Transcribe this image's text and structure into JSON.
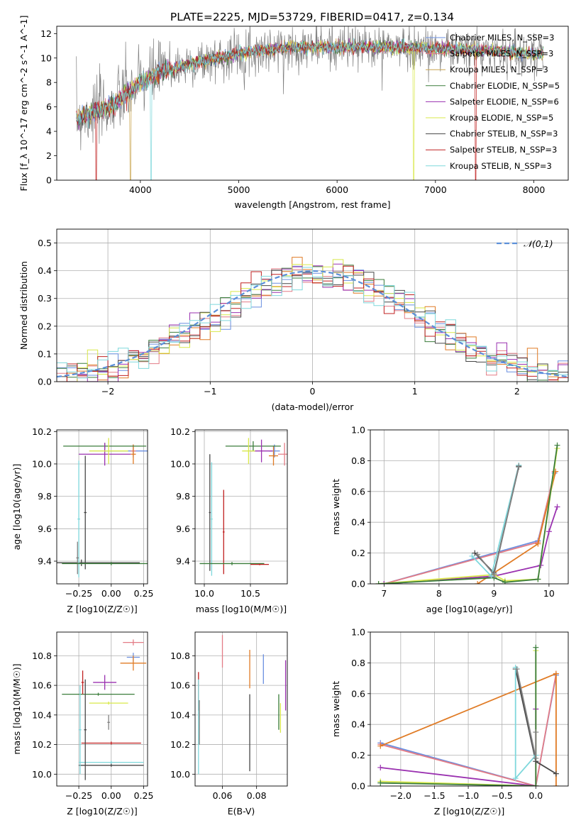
{
  "figure_title": "PLATE=2225, MJD=53729, FIBERID=0417, z=0.134",
  "colors": {
    "chabrier_miles": "#6a8fe0",
    "salpeter_miles": "#e37c86",
    "kroupa_miles": "#c9a44e",
    "chabrier_elodie": "#3b7d3b",
    "salpeter_elodie": "#9a31b0",
    "kroupa_elodie": "#d8e84a",
    "chabrier_stelib": "#474747",
    "salpeter_stelib": "#c02020",
    "kroupa_stelib": "#7fd8dc",
    "data_grey": "#808080",
    "orange": "#e07b25",
    "gaussian": "#5b8fd8",
    "grid": "#b0b0b0"
  },
  "chart_data": [
    {
      "id": "spectrum",
      "type": "line",
      "title": "PLATE=2225, MJD=53729, FIBERID=0417, z=0.134",
      "xlabel": "wavelength [Angstrom, rest frame]",
      "ylabel": "Flux [f_λ 10^-17 erg cm^-2 s^-1 A^-1]",
      "xlim": [
        3150,
        8350
      ],
      "ylim": [
        0,
        12.6
      ],
      "xticks": [
        "4000",
        "5000",
        "6000",
        "7000",
        "8000"
      ],
      "yticks": [
        "0",
        "2",
        "4",
        "6",
        "8",
        "10",
        "12"
      ],
      "grid": false,
      "legend": "upper right",
      "legend_entries": [
        "Chabrier MILES, N_SSP=3",
        "Salpeter MILES, N_SSP=3",
        "Kroupa MILES, N_SSP=3",
        "Chabrier ELODIE, N_SSP=5",
        "Salpeter ELODIE, N_SSP=6",
        "Kroupa ELODIE, N_SSP=5",
        "Chabrier STELIB, N_SSP=3",
        "Salpeter STELIB, N_SSP=3",
        "Kroupa STELIB, N_SSP=3"
      ],
      "continuum": {
        "x": [
          3350,
          3500,
          3700,
          3900,
          4000,
          4200,
          4500,
          4800,
          5000,
          5300,
          5600,
          6000,
          6500,
          7000,
          7500,
          8000,
          8100
        ],
        "y": [
          5.0,
          5.5,
          6.0,
          7.3,
          8.0,
          8.8,
          9.5,
          10.0,
          10.4,
          10.7,
          10.9,
          10.9,
          10.9,
          10.8,
          10.6,
          10.3,
          10.3
        ]
      },
      "dropouts": [
        {
          "x": 3550,
          "y": 0
        },
        {
          "x": 3900,
          "y": 0
        },
        {
          "x": 4110,
          "y": 0
        },
        {
          "x": 6780,
          "y": 0
        },
        {
          "x": 7410,
          "y": 0
        }
      ]
    },
    {
      "id": "residuals",
      "type": "line",
      "xlabel": "(data-model)/error",
      "ylabel": "Normed distribution",
      "xlim": [
        -2.5,
        2.5
      ],
      "ylim": [
        0,
        0.55
      ],
      "xticks": [
        "−2",
        "−1",
        "0",
        "1",
        "2"
      ],
      "yticks": [
        "0.0",
        "0.1",
        "0.2",
        "0.3",
        "0.4",
        "0.5"
      ],
      "grid": true,
      "legend": "upper right",
      "legend_entry": "𝒩(0,1)",
      "gaussian": {
        "mean": 0,
        "sigma": 1
      },
      "bin_width": 0.1
    },
    {
      "id": "age-vs-Z",
      "type": "scatter",
      "xlabel": "Z [log10(Z/Z☉)]",
      "ylabel": "age  [log10(age/yr)]",
      "xlim": [
        -0.42,
        0.28
      ],
      "ylim": [
        9.26,
        10.21
      ],
      "xticks": [
        "−0.25",
        "0.00",
        "0.25"
      ],
      "yticks": [
        "9.4",
        "9.6",
        "9.8",
        "10.0",
        "10.2"
      ],
      "grid": true,
      "points": [
        {
          "color": "chabrier_miles",
          "x": 0.17,
          "xerr": 0.22,
          "y": 10.08,
          "yerr": 0.04
        },
        {
          "color": "salpeter_miles",
          "x": 0.17,
          "xerr": 0.02,
          "y": 10.08,
          "yerr": 0.03
        },
        {
          "color": "orange",
          "x": 0.17,
          "xerr": 0.02,
          "y": 10.06,
          "yerr": 0.06
        },
        {
          "color": "chabrier_elodie",
          "x": -0.05,
          "xerr": 0.32,
          "y": 10.11,
          "yerr": 0.02
        },
        {
          "color": "salpeter_elodie",
          "x": -0.05,
          "xerr": 0.2,
          "y": 10.06,
          "yerr": 0.07
        },
        {
          "color": "kroupa_elodie",
          "x": -0.02,
          "xerr": 0.15,
          "y": 10.08,
          "yerr": 0.08
        },
        {
          "color": "chabrier_stelib",
          "x": -0.23,
          "xerr": 0.45,
          "y": 9.39,
          "yerr": 0.02
        },
        {
          "color": "chabrier_stelib",
          "x": -0.2,
          "xerr": 0.01,
          "y": 9.7,
          "yerr": 0.35
        },
        {
          "color": "kroupa_stelib",
          "x": -0.25,
          "xerr": 0.01,
          "y": 9.66,
          "yerr": 0.36
        },
        {
          "color": "data_grey",
          "x": -0.26,
          "xerr": 0.01,
          "y": 9.42,
          "yerr": 0.1
        },
        {
          "color": "chabrier_elodie",
          "x": 0.0,
          "xerr": 0.38,
          "y": 9.385,
          "yerr": 0.01
        }
      ]
    },
    {
      "id": "age-vs-mass",
      "type": "scatter",
      "xlabel": "mass [log10(M/M☉)]",
      "ylabel": "",
      "xlim": [
        9.9,
        10.9
      ],
      "ylim": [
        9.26,
        10.21
      ],
      "xticks": [
        "10.0",
        "10.5"
      ],
      "yticks": [
        "9.4",
        "9.6",
        "9.8",
        "10.0",
        "10.2"
      ],
      "grid": true,
      "points": [
        {
          "color": "chabrier_miles",
          "x": 10.76,
          "xerr": 0.06,
          "y": 10.08,
          "yerr": 0.04
        },
        {
          "color": "salpeter_miles",
          "x": 10.87,
          "xerr": 0.07,
          "y": 10.06,
          "yerr": 0.07
        },
        {
          "color": "orange",
          "x": 10.75,
          "xerr": 0.05,
          "y": 10.05,
          "yerr": 0.06
        },
        {
          "color": "chabrier_elodie",
          "x": 10.53,
          "xerr": 0.3,
          "y": 10.11,
          "yerr": 0.03
        },
        {
          "color": "salpeter_elodie",
          "x": 10.62,
          "xerr": 0.12,
          "y": 10.08,
          "yerr": 0.07
        },
        {
          "color": "kroupa_elodie",
          "x": 10.48,
          "xerr": 0.07,
          "y": 10.08,
          "yerr": 0.08
        },
        {
          "color": "chabrier_stelib",
          "x": 10.06,
          "xerr": 0.01,
          "y": 9.7,
          "yerr": 0.36
        },
        {
          "color": "kroupa_stelib",
          "x": 10.08,
          "xerr": 0.01,
          "y": 9.66,
          "yerr": 0.35
        },
        {
          "color": "salpeter_stelib",
          "x": 10.21,
          "xerr": 0.01,
          "y": 9.58,
          "yerr": 0.26
        },
        {
          "color": "chabrier_elodie",
          "x": 10.3,
          "xerr": 0.35,
          "y": 9.385,
          "yerr": 0.01
        },
        {
          "color": "salpeter_stelib",
          "x": 10.6,
          "xerr": 0.1,
          "y": 9.38,
          "yerr": 0.005
        }
      ]
    },
    {
      "id": "weight-vs-age",
      "type": "line",
      "xlabel": "age  [log10(age/yr)]",
      "ylabel": "mass weight",
      "xlim": [
        6.75,
        10.35
      ],
      "ylim": [
        0,
        1.0
      ],
      "xticks": [
        "7",
        "8",
        "9",
        "10"
      ],
      "yticks": [
        "0.0",
        "0.2",
        "0.4",
        "0.6",
        "0.8",
        "1.0"
      ],
      "grid": true,
      "series": [
        {
          "color": "chabrier_miles",
          "x": [
            7.0,
            9.8,
            10.1
          ],
          "y": [
            0.0,
            0.28,
            0.72
          ]
        },
        {
          "color": "salpeter_miles",
          "x": [
            7.0,
            9.8,
            10.1
          ],
          "y": [
            0.0,
            0.27,
            0.73
          ]
        },
        {
          "color": "orange",
          "x": [
            8.7,
            9.8,
            10.12
          ],
          "y": [
            0.0,
            0.26,
            0.73
          ]
        },
        {
          "color": "salpeter_elodie",
          "x": [
            7.0,
            9.0,
            9.85,
            10.0,
            10.15
          ],
          "y": [
            0.0,
            0.05,
            0.12,
            0.34,
            0.5
          ]
        },
        {
          "color": "kroupa_elodie",
          "x": [
            6.9,
            9.0,
            9.2,
            9.8,
            10.15
          ],
          "y": [
            0.0,
            0.06,
            0.02,
            0.03,
            0.88
          ]
        },
        {
          "color": "chabrier_elodie",
          "x": [
            6.9,
            9.0,
            9.2,
            9.8,
            10.15
          ],
          "y": [
            0.0,
            0.04,
            0.01,
            0.03,
            0.9
          ]
        },
        {
          "color": "chabrier_stelib",
          "x": [
            8.65,
            9.0,
            9.45
          ],
          "y": [
            0.2,
            0.07,
            0.76
          ]
        },
        {
          "color": "kroupa_stelib",
          "x": [
            8.6,
            8.95,
            9.45
          ],
          "y": [
            0.18,
            0.05,
            0.77
          ]
        },
        {
          "color": "data_grey",
          "x": [
            8.7,
            9.0,
            9.45
          ],
          "y": [
            0.19,
            0.06,
            0.765
          ]
        }
      ]
    },
    {
      "id": "mass-vs-Z",
      "type": "scatter",
      "xlabel": "Z [log10(Z/Z☉)]",
      "ylabel": "mass [log10(M/M☉)]",
      "xlim": [
        -0.42,
        0.28
      ],
      "ylim": [
        9.92,
        10.96
      ],
      "xticks": [
        "−0.25",
        "0.00",
        "0.25"
      ],
      "yticks": [
        "10.0",
        "10.2",
        "10.4",
        "10.6",
        "10.8"
      ],
      "grid": true,
      "points": [
        {
          "color": "salpeter_miles",
          "x": 0.17,
          "xerr": 0.08,
          "y": 10.89,
          "yerr": 0.02
        },
        {
          "color": "chabrier_miles",
          "x": 0.17,
          "xerr": 0.05,
          "y": 10.79,
          "yerr": 0.03
        },
        {
          "color": "orange",
          "x": 0.17,
          "xerr": 0.1,
          "y": 10.75,
          "yerr": 0.05
        },
        {
          "color": "salpeter_elodie",
          "x": -0.05,
          "xerr": 0.09,
          "y": 10.62,
          "yerr": 0.05
        },
        {
          "color": "chabrier_elodie",
          "x": -0.1,
          "xerr": 0.28,
          "y": 10.54,
          "yerr": 0.01
        },
        {
          "color": "kroupa_elodie",
          "x": -0.02,
          "xerr": 0.15,
          "y": 10.48,
          "yerr": 0.01
        },
        {
          "color": "salpeter_stelib",
          "x": 0.0,
          "xerr": 0.23,
          "y": 10.21,
          "yerr": 0.01
        },
        {
          "color": "kroupa_stelib",
          "x": 0.0,
          "xerr": 0.25,
          "y": 10.08,
          "yerr": 0.01
        },
        {
          "color": "chabrier_stelib",
          "x": 0.0,
          "xerr": 0.25,
          "y": 10.06,
          "yerr": 0.01
        },
        {
          "color": "salpeter_stelib",
          "x": -0.22,
          "xerr": 0.01,
          "y": 10.62,
          "yerr": 0.08
        },
        {
          "color": "chabrier_stelib",
          "x": -0.2,
          "xerr": 0.01,
          "y": 10.3,
          "yerr": 0.34
        },
        {
          "color": "kroupa_stelib",
          "x": -0.24,
          "xerr": 0.01,
          "y": 10.3,
          "yerr": 0.3
        },
        {
          "color": "data_grey",
          "x": -0.02,
          "xerr": 0.01,
          "y": 10.35,
          "yerr": 0.05
        }
      ]
    },
    {
      "id": "mass-vs-ebv",
      "type": "scatter",
      "xlabel": "E(B-V)",
      "ylabel": "",
      "xlim": [
        0.044,
        0.098
      ],
      "ylim": [
        9.92,
        10.96
      ],
      "xticks": [
        "0.06",
        "0.08"
      ],
      "yticks": [
        "10.0",
        "10.2",
        "10.4",
        "10.6",
        "10.8"
      ],
      "grid": true,
      "points": [
        {
          "color": "salpeter_miles",
          "x": 0.06,
          "xerr": 0.0,
          "y": 10.83,
          "yerr": 0.11
        },
        {
          "color": "chabrier_miles",
          "x": 0.084,
          "xerr": 0.0,
          "y": 10.71,
          "yerr": 0.1
        },
        {
          "color": "orange",
          "x": 0.076,
          "xerr": 0.0,
          "y": 10.71,
          "yerr": 0.13
        },
        {
          "color": "salpeter_elodie",
          "x": 0.097,
          "xerr": 0.0,
          "y": 10.6,
          "yerr": 0.17
        },
        {
          "color": "chabrier_elodie",
          "x": 0.093,
          "xerr": 0.0,
          "y": 10.42,
          "yerr": 0.12
        },
        {
          "color": "kroupa_elodie",
          "x": 0.094,
          "xerr": 0.0,
          "y": 10.38,
          "yerr": 0.1
        },
        {
          "color": "salpeter_stelib",
          "x": 0.046,
          "xerr": 0.0,
          "y": 10.56,
          "yerr": 0.13
        },
        {
          "color": "chabrier_stelib",
          "x": 0.076,
          "xerr": 0.0,
          "y": 10.28,
          "yerr": 0.26
        },
        {
          "color": "kroupa_stelib",
          "x": 0.046,
          "xerr": 0.0,
          "y": 10.32,
          "yerr": 0.32
        },
        {
          "color": "data_grey",
          "x": 0.0465,
          "xerr": 0.0,
          "y": 10.35,
          "yerr": 0.15
        }
      ]
    },
    {
      "id": "weight-vs-Z",
      "type": "line",
      "xlabel": "Z [log10(Z/Z☉)]",
      "ylabel": "mass weight",
      "xlim": [
        -2.45,
        0.48
      ],
      "ylim": [
        0,
        1.0
      ],
      "xticks": [
        "−2.0",
        "−1.5",
        "−1.0",
        "−0.5",
        "0.0"
      ],
      "yticks": [
        "0.0",
        "0.2",
        "0.4",
        "0.6",
        "0.8",
        "1.0"
      ],
      "grid": true,
      "series": [
        {
          "color": "chabrier_miles",
          "x": [
            -2.3,
            0.0,
            0.3
          ],
          "y": [
            0.28,
            0.0,
            0.72
          ]
        },
        {
          "color": "salpeter_miles",
          "x": [
            -2.3,
            0.0,
            0.3
          ],
          "y": [
            0.27,
            0.0,
            0.73
          ]
        },
        {
          "color": "orange",
          "x": [
            -2.3,
            0.3,
            0.3
          ],
          "y": [
            0.26,
            0.73,
            0.0
          ]
        },
        {
          "color": "salpeter_elodie",
          "x": [
            -2.3,
            0.0,
            0.0
          ],
          "y": [
            0.12,
            0.0,
            0.5
          ]
        },
        {
          "color": "kroupa_elodie",
          "x": [
            -2.3,
            0.0,
            0.0
          ],
          "y": [
            0.03,
            0.0,
            0.88
          ]
        },
        {
          "color": "chabrier_elodie",
          "x": [
            -2.3,
            0.0,
            0.0
          ],
          "y": [
            0.02,
            0.0,
            0.9
          ]
        },
        {
          "color": "chabrier_stelib",
          "x": [
            -0.3,
            0.0,
            0.3
          ],
          "y": [
            0.76,
            0.16,
            0.08
          ]
        },
        {
          "color": "kroupa_stelib",
          "x": [
            -0.3,
            -0.3,
            0.0
          ],
          "y": [
            0.77,
            0.05,
            0.2
          ]
        },
        {
          "color": "data_grey",
          "x": [
            -0.28,
            0.0,
            0.0
          ],
          "y": [
            0.76,
            0.18,
            0.35
          ]
        }
      ]
    }
  ]
}
